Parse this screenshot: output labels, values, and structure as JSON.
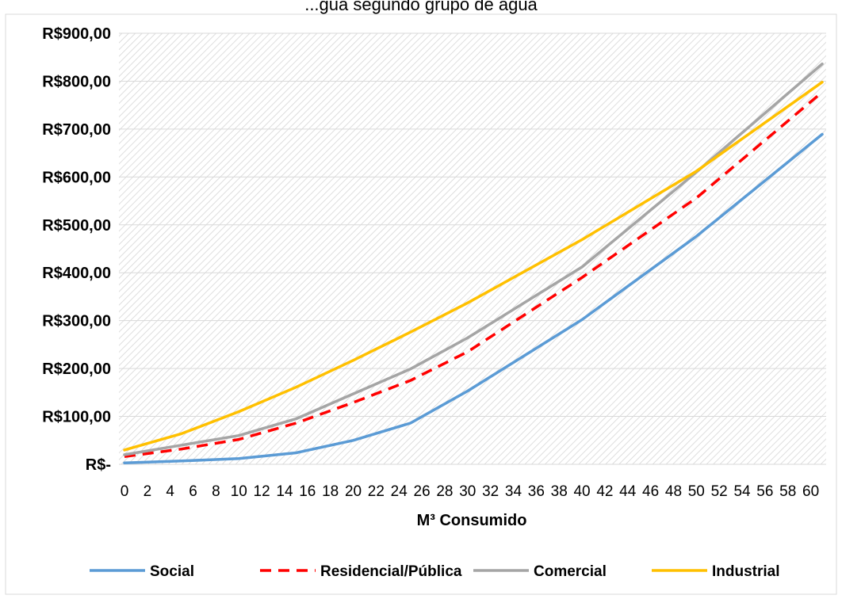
{
  "chart_data": {
    "type": "line",
    "title": "...gua segundo grupo de água",
    "xlabel": "M³ Consumido",
    "ylabel": "",
    "ylim": [
      0,
      900
    ],
    "xlim": [
      0,
      61
    ],
    "x_ticks": [
      "0",
      "2",
      "4",
      "6",
      "8",
      "10",
      "12",
      "14",
      "16",
      "18",
      "20",
      "22",
      "24",
      "26",
      "28",
      "30",
      "32",
      "34",
      "36",
      "38",
      "40",
      "42",
      "44",
      "46",
      "48",
      "50",
      "52",
      "54",
      "56",
      "58",
      "60"
    ],
    "y_ticks": [
      "R$-",
      "R$100,00",
      "R$200,00",
      "R$300,00",
      "R$400,00",
      "R$500,00",
      "R$600,00",
      "R$700,00",
      "R$800,00",
      "R$900,00"
    ],
    "grid": true,
    "legend_position": "bottom",
    "x": [
      0,
      5,
      10,
      15,
      20,
      25,
      30,
      40,
      50,
      61
    ],
    "series": [
      {
        "name": "Social",
        "color": "#5B9BD5",
        "dash": "solid",
        "values": [
          3,
          7,
          12,
          24,
          50,
          86,
          153,
          302,
          476,
          689
        ]
      },
      {
        "name": "Residencial/Pública",
        "color": "#FF0000",
        "dash": "dashed",
        "values": [
          16,
          32,
          52,
          86,
          129,
          175,
          235,
          390,
          556,
          777
        ]
      },
      {
        "name": "Comercial",
        "color": "#A5A5A5",
        "dash": "solid",
        "values": [
          20,
          40,
          60,
          95,
          147,
          199,
          264,
          412,
          610,
          836
        ]
      },
      {
        "name": "Industrial",
        "color": "#FFC000",
        "dash": "solid",
        "values": [
          30,
          64,
          110,
          161,
          217,
          276,
          337,
          469,
          612,
          798
        ]
      }
    ]
  }
}
